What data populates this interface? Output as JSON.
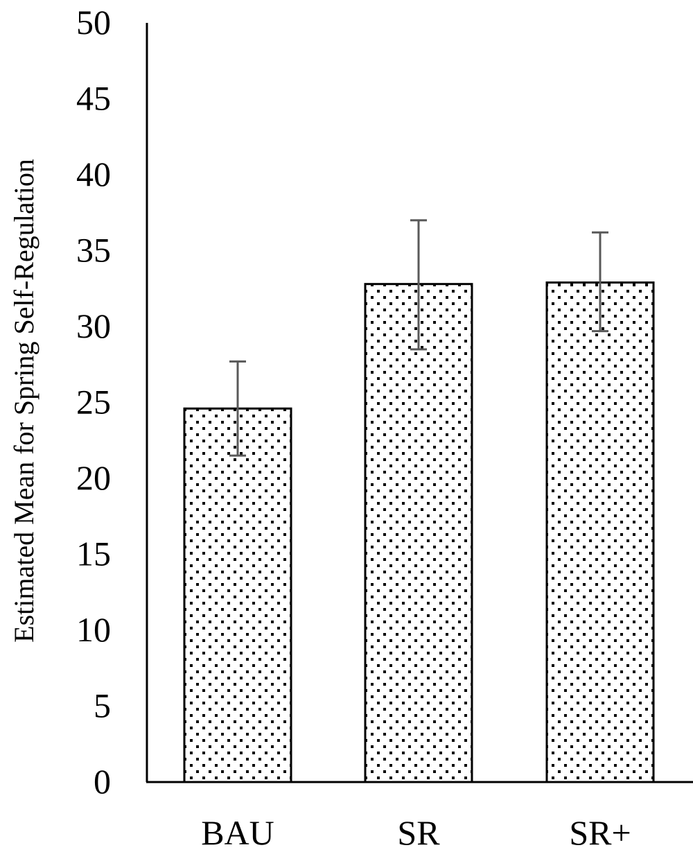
{
  "chart_data": {
    "type": "bar",
    "title": "",
    "xlabel": "",
    "ylabel": "Estimated Mean for Spring Self-Regulation",
    "categories": [
      "BAU",
      "SR",
      "SR+"
    ],
    "values": [
      24.6,
      32.8,
      32.9
    ],
    "error_bars": [
      {
        "lower": 21.5,
        "upper": 27.7
      },
      {
        "lower": 28.5,
        "upper": 37.0
      },
      {
        "lower": 29.7,
        "upper": 36.2
      }
    ],
    "ylim": [
      0,
      50
    ],
    "yticks": [
      "0",
      "5",
      "10",
      "15",
      "20",
      "25",
      "30",
      "35",
      "40",
      "45",
      "50"
    ],
    "grid": false,
    "legend": "none",
    "bar_fill": "dotted pattern",
    "colors": {
      "bar_fill": "#ffffff",
      "bar_dots": "#000000",
      "bar_stroke": "#000000",
      "error_bar": "#595959",
      "axis": "#000000"
    }
  }
}
